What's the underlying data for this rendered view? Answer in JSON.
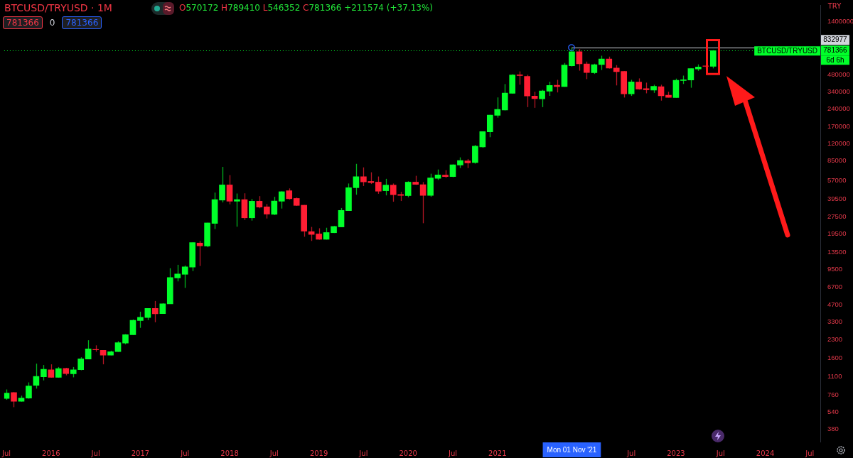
{
  "chart_data": {
    "type": "candlestick",
    "title": "BTCUSD/TRYUSD · 1M",
    "subtitle": "O570172 H789410 L546352 C781366 +211574 (+37.13%)",
    "ylabel": "TRY",
    "log": "y",
    "ylim": [
      297,
      1940000
    ],
    "yticks": [
      380,
      540,
      760,
      1100,
      1600,
      2300,
      3300,
      4700,
      6700,
      9500,
      13500,
      19500,
      27500,
      39500,
      57000,
      85000,
      120000,
      170000,
      240000,
      340000,
      480000,
      1400000
    ],
    "xlim": [
      "2015-06-22",
      "2024-08-13"
    ],
    "xticks": [
      {
        "value": "2015-07",
        "label": "Jul"
      },
      {
        "value": "2016-01",
        "label": "2016"
      },
      {
        "value": "2016-07",
        "label": "Jul"
      },
      {
        "value": "2017-01",
        "label": "2017"
      },
      {
        "value": "2017-07",
        "label": "Jul"
      },
      {
        "value": "2018-01",
        "label": "2018"
      },
      {
        "value": "2018-07",
        "label": "Jul"
      },
      {
        "value": "2019-01",
        "label": "2019"
      },
      {
        "value": "2019-07",
        "label": "Jul"
      },
      {
        "value": "2020-01",
        "label": "2020"
      },
      {
        "value": "2020-07",
        "label": "Jul"
      },
      {
        "value": "2021-01",
        "label": "2021"
      },
      {
        "value": "2022-07",
        "label": "Jul"
      },
      {
        "value": "2023-01",
        "label": "2023"
      },
      {
        "value": "2023-07",
        "label": "Jul"
      },
      {
        "value": "2024-01",
        "label": "2024"
      },
      {
        "value": "2024-07",
        "label": "Jul"
      }
    ],
    "x": [
      "2015-07",
      "2015-08",
      "2015-09",
      "2015-10",
      "2015-11",
      "2015-12",
      "2016-01",
      "2016-02",
      "2016-03",
      "2016-04",
      "2016-05",
      "2016-06",
      "2016-07",
      "2016-08",
      "2016-09",
      "2016-10",
      "2016-11",
      "2016-12",
      "2017-01",
      "2017-02",
      "2017-03",
      "2017-04",
      "2017-05",
      "2017-06",
      "2017-07",
      "2017-08",
      "2017-09",
      "2017-10",
      "2017-11",
      "2017-12",
      "2018-01",
      "2018-02",
      "2018-03",
      "2018-04",
      "2018-05",
      "2018-06",
      "2018-07",
      "2018-08",
      "2018-09",
      "2018-10",
      "2018-11",
      "2018-12",
      "2019-01",
      "2019-02",
      "2019-03",
      "2019-04",
      "2019-05",
      "2019-06",
      "2019-07",
      "2019-08",
      "2019-09",
      "2019-10",
      "2019-11",
      "2019-12",
      "2020-01",
      "2020-02",
      "2020-03",
      "2020-04",
      "2020-05",
      "2020-06",
      "2020-07",
      "2020-08",
      "2020-09",
      "2020-10",
      "2020-11",
      "2020-12",
      "2021-01",
      "2021-02",
      "2021-03",
      "2021-04",
      "2021-05",
      "2021-06",
      "2021-07",
      "2021-08",
      "2021-09",
      "2021-10",
      "2021-11",
      "2021-12",
      "2022-01",
      "2022-02",
      "2022-03",
      "2022-04",
      "2022-05",
      "2022-06",
      "2022-07",
      "2022-08",
      "2022-09",
      "2022-10",
      "2022-11",
      "2022-12",
      "2023-01",
      "2023-02",
      "2023-03",
      "2023-04",
      "2023-05",
      "2023-06"
    ],
    "ohlc": [
      [
        710,
        850,
        690,
        790
      ],
      [
        800,
        805,
        595,
        670
      ],
      [
        670,
        750,
        665,
        715
      ],
      [
        715,
        980,
        705,
        910
      ],
      [
        925,
        1430,
        865,
        1105
      ],
      [
        1095,
        1390,
        1020,
        1275
      ],
      [
        1260,
        1410,
        1080,
        1085
      ],
      [
        1085,
        1335,
        1080,
        1295
      ],
      [
        1300,
        1315,
        1130,
        1170
      ],
      [
        1165,
        1335,
        1085,
        1260
      ],
      [
        1265,
        1625,
        1250,
        1575
      ],
      [
        1565,
        2290,
        1560,
        1925
      ],
      [
        1905,
        2067,
        1820,
        1890
      ],
      [
        1870,
        1875,
        1410,
        1695
      ],
      [
        1695,
        1855,
        1690,
        1820
      ],
      [
        1820,
        2250,
        1815,
        2180
      ],
      [
        2165,
        2590,
        2110,
        2565
      ],
      [
        2555,
        3480,
        2550,
        3420
      ],
      [
        3400,
        4070,
        2940,
        3635
      ],
      [
        3620,
        4365,
        3435,
        4350
      ],
      [
        4350,
        5050,
        3290,
        3900
      ],
      [
        3915,
        4820,
        3900,
        4770
      ],
      [
        4770,
        9760,
        4765,
        8090
      ],
      [
        8045,
        10470,
        7490,
        8710
      ],
      [
        8640,
        10320,
        6570,
        10040
      ],
      [
        9990,
        16440,
        9220,
        16370
      ],
      [
        16220,
        16920,
        10220,
        15320
      ],
      [
        15260,
        24420,
        14900,
        24320
      ],
      [
        24080,
        44780,
        21500,
        38900
      ],
      [
        38500,
        75150,
        36750,
        52300
      ],
      [
        52300,
        63700,
        35380,
        37650
      ],
      [
        37650,
        43970,
        22530,
        38900
      ],
      [
        38900,
        44150,
        25830,
        26950
      ],
      [
        26950,
        39440,
        25470,
        37650
      ],
      [
        37650,
        41730,
        32690,
        33440
      ],
      [
        33630,
        35590,
        26580,
        29050
      ],
      [
        28910,
        41140,
        28510,
        37800
      ],
      [
        37650,
        46060,
        32480,
        45610
      ],
      [
        46520,
        48730,
        38900,
        39600
      ],
      [
        39830,
        40560,
        34250,
        34590
      ],
      [
        34740,
        34880,
        18410,
        20610
      ],
      [
        20410,
        22430,
        16920,
        19290
      ],
      [
        19480,
        21840,
        17350,
        17480
      ],
      [
        17480,
        22070,
        17400,
        20040
      ],
      [
        19960,
        22850,
        19850,
        22650
      ],
      [
        22430,
        32840,
        22400,
        31300
      ],
      [
        31140,
        53800,
        31000,
        49420
      ],
      [
        49420,
        79870,
        42920,
        61680
      ],
      [
        61680,
        74410,
        51180,
        55560
      ],
      [
        56110,
        67420,
        53260,
        54770
      ],
      [
        55320,
        61940,
        43730,
        46060
      ],
      [
        46520,
        59110,
        42320,
        52080
      ],
      [
        52080,
        53800,
        37280,
        42920
      ],
      [
        43100,
        45420,
        37810,
        42320
      ],
      [
        42140,
        56270,
        40740,
        55320
      ],
      [
        55320,
        62820,
        52300,
        52820
      ],
      [
        52520,
        55320,
        24170,
        42320
      ],
      [
        42320,
        65540,
        41140,
        60220
      ],
      [
        59580,
        71320,
        57720,
        64000
      ],
      [
        63700,
        70320,
        60220,
        61940
      ],
      [
        61940,
        78990,
        61070,
        78430
      ],
      [
        77990,
        91050,
        73390,
        85320
      ],
      [
        84840,
        88130,
        73390,
        81340
      ],
      [
        82140,
        116900,
        80200,
        114120
      ],
      [
        112530,
        153000,
        110480,
        152800
      ],
      [
        152150,
        214400,
        136600,
        213500
      ],
      [
        212300,
        304500,
        202650,
        239300
      ],
      [
        236700,
        398300,
        234500,
        332000
      ],
      [
        330600,
        486000,
        329000,
        479100
      ],
      [
        481000,
        514100,
        393300,
        472400
      ],
      [
        465800,
        481000,
        250400,
        313800
      ],
      [
        312500,
        341500,
        246900,
        296800
      ],
      [
        295600,
        354700,
        250400,
        346400
      ],
      [
        344900,
        418000,
        313800,
        387700
      ],
      [
        389300,
        434100,
        336700,
        378600
      ],
      [
        378600,
        609000,
        377000,
        583700
      ],
      [
        575500,
        832977,
        567700,
        763200
      ],
      [
        763200,
        806000,
        521800,
        597800
      ],
      [
        597800,
        626400,
        440300,
        501900
      ],
      [
        499800,
        600300,
        488700,
        589600
      ],
      [
        589600,
        705300,
        529000,
        659900
      ],
      [
        659900,
        692500,
        544000,
        549400
      ],
      [
        549400,
        583700,
        387700,
        512000
      ],
      [
        514100,
        516300,
        303900,
        327400
      ],
      [
        327400,
        434100,
        313800,
        416000
      ],
      [
        414300,
        446600,
        356200,
        359800
      ],
      [
        362800,
        410200,
        330600,
        354700
      ],
      [
        352700,
        393300,
        333400,
        380800
      ],
      [
        378600,
        393300,
        285500,
        315100
      ],
      [
        318600,
        341500,
        303900,
        305100
      ],
      [
        303900,
        444700,
        302500,
        429900
      ],
      [
        428100,
        472400,
        399000,
        434100
      ],
      [
        432300,
        545000,
        370000,
        544000
      ],
      [
        538800,
        592000,
        519600,
        561800
      ],
      [
        575000,
        578000,
        545000,
        570172
      ],
      [
        570172,
        789410,
        546352,
        781366
      ]
    ],
    "colors": [
      "#00ff2a",
      "#ff1e33",
      "#00ff2a",
      "#00ff2a",
      "#00ff2a",
      "#00ff2a",
      "#ff1e33",
      "#00ff2a",
      "#ff1e33",
      "#00ff2a",
      "#00ff2a",
      "#00ff2a",
      "#ff1e33",
      "#ff1e33",
      "#00ff2a",
      "#00ff2a",
      "#00ff2a",
      "#00ff2a",
      "#00ff2a",
      "#00ff2a",
      "#ff1e33",
      "#00ff2a",
      "#00ff2a",
      "#00ff2a",
      "#00ff2a",
      "#00ff2a",
      "#ff1e33",
      "#00ff2a",
      "#00ff2a",
      "#00ff2a",
      "#ff1e33",
      "#00ff2a",
      "#ff1e33",
      "#00ff2a",
      "#ff1e33",
      "#ff1e33",
      "#00ff2a",
      "#00ff2a",
      "#ff1e33",
      "#ff1e33",
      "#ff1e33",
      "#ff1e33",
      "#ff1e33",
      "#00ff2a",
      "#00ff2a",
      "#00ff2a",
      "#00ff2a",
      "#00ff2a",
      "#ff1e33",
      "#ff1e33",
      "#ff1e33",
      "#00ff2a",
      "#ff1e33",
      "#ff1e33",
      "#00ff2a",
      "#ff1e33",
      "#ff1e33",
      "#00ff2a",
      "#00ff2a",
      "#ff1e33",
      "#00ff2a",
      "#00ff2a",
      "#ff1e33",
      "#00ff2a",
      "#00ff2a",
      "#00ff2a",
      "#00ff2a",
      "#00ff2a",
      "#00ff2a",
      "#ff1e33",
      "#ff1e33",
      "#ff1e33",
      "#00ff2a",
      "#00ff2a",
      "#ff1e33",
      "#00ff2a",
      "#00ff2a",
      "#ff1e33",
      "#ff1e33",
      "#00ff2a",
      "#00ff2a",
      "#ff1e33",
      "#ff1e33",
      "#ff1e33",
      "#00ff2a",
      "#ff1e33",
      "#ff1e33",
      "#00ff2a",
      "#ff1e33",
      "#ff1e33",
      "#00ff2a",
      "#00ff2a",
      "#00ff2a",
      "#00ff2a",
      "#ff1e33",
      "#00ff2a"
    ],
    "ref_lines": [
      {
        "axis": "y",
        "value": 832977,
        "label": "832977",
        "color": "#d1d4dc",
        "line_style": "solid"
      },
      {
        "axis": "y",
        "value": 781366,
        "label": "781366",
        "color": "#00ff2a",
        "line_style": "dotted"
      }
    ],
    "annotations": [
      "781366",
      "0",
      "781366",
      {
        "text": "BTCUSD/TRYUSD",
        "y": 781366
      },
      "6d 6h",
      "Mon 01 Nov '21"
    ]
  }
}
